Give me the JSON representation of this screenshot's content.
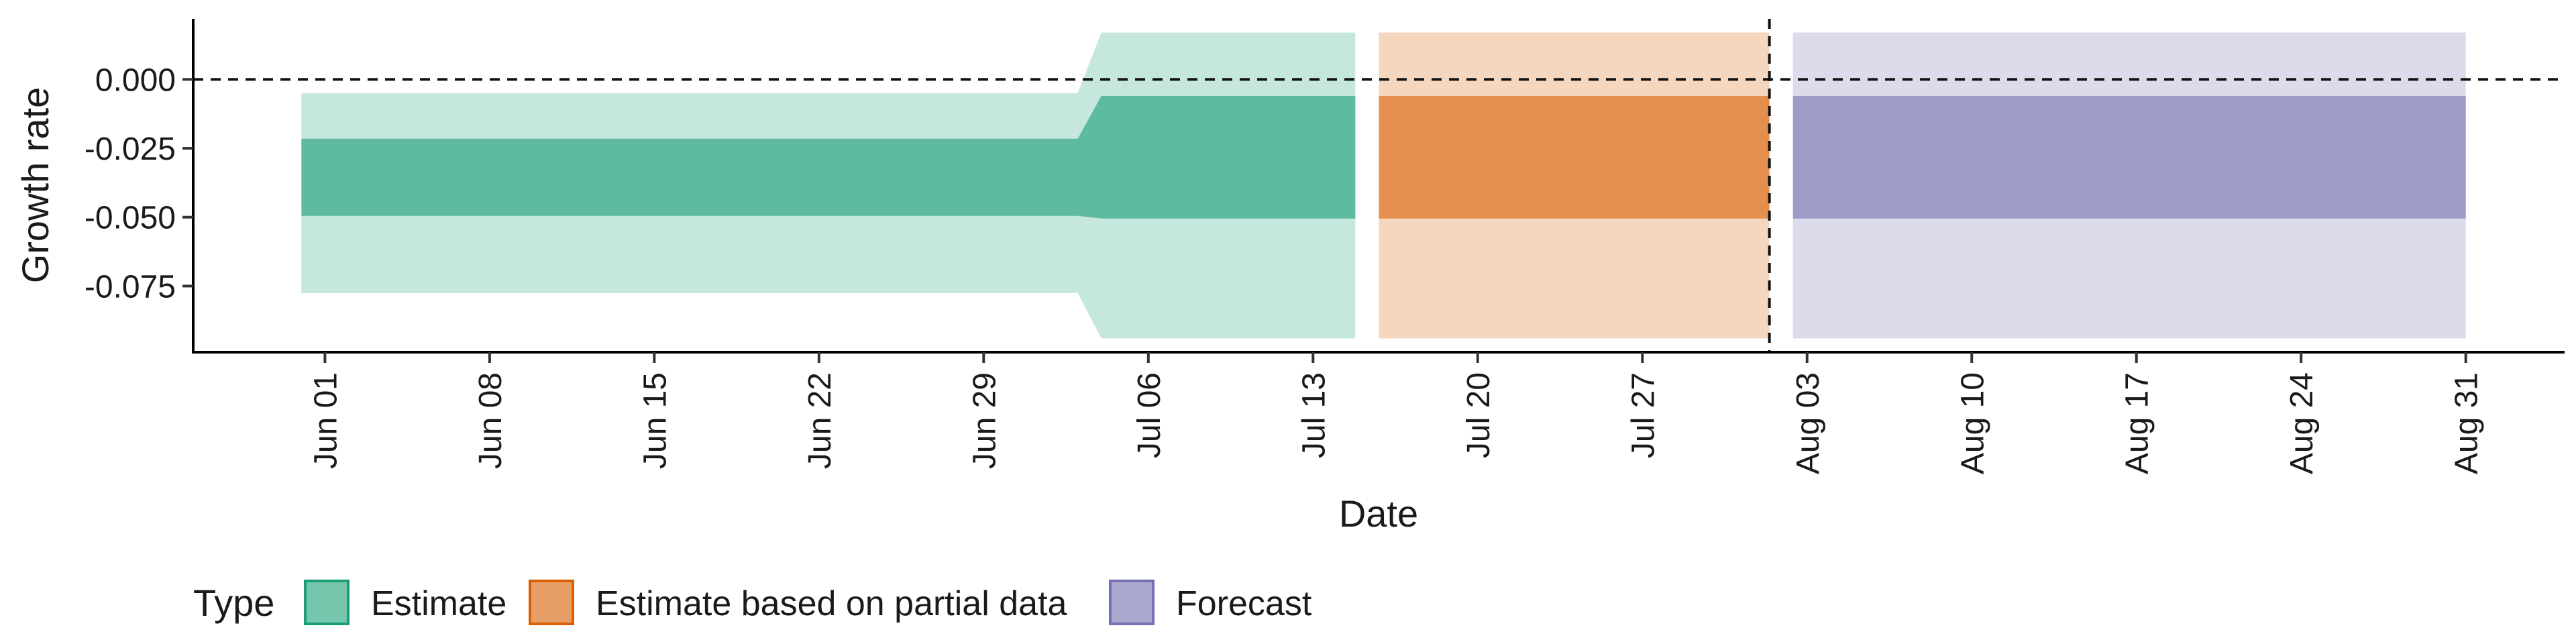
{
  "chart_data": {
    "type": "area",
    "title": "",
    "xlabel": "Date",
    "ylabel": "Growth rate",
    "x_ticks": [
      "Jun 01",
      "Jun 08",
      "Jun 15",
      "Jun 22",
      "Jun 29",
      "Jul 06",
      "Jul 13",
      "Jul 20",
      "Jul 27",
      "Aug 03",
      "Aug 10",
      "Aug 17",
      "Aug 24",
      "Aug 31"
    ],
    "y_ticks": [
      "0.000",
      "-0.025",
      "-0.050",
      "-0.075"
    ],
    "y_tick_values": [
      0.0,
      -0.025,
      -0.05,
      -0.075
    ],
    "xlim_days": [
      -5.6,
      95.2
    ],
    "ylim": [
      -0.099,
      0.022
    ],
    "reference_line_y": 0.0,
    "forecast_start_day": 61.4,
    "legend": {
      "title": "Type",
      "position": "bottom-left",
      "entries": [
        {
          "label": "Estimate",
          "color": "#1B9E77"
        },
        {
          "label": "Estimate based on partial data",
          "color": "#D95F02"
        },
        {
          "label": "Forecast",
          "color": "#7570B3"
        }
      ]
    },
    "series": [
      {
        "name": "Estimate",
        "color": "#1B9E77",
        "points": [
          {
            "day": -1,
            "inner_lo": -0.0495,
            "inner_hi": -0.0215,
            "outer_lo": -0.0775,
            "outer_hi": -0.005
          },
          {
            "day": 32,
            "inner_lo": -0.0495,
            "inner_hi": -0.0215,
            "outer_lo": -0.0775,
            "outer_hi": -0.005
          },
          {
            "day": 33,
            "inner_lo": -0.0505,
            "inner_hi": -0.006,
            "outer_lo": -0.094,
            "outer_hi": 0.017
          },
          {
            "day": 43.8,
            "inner_lo": -0.0505,
            "inner_hi": -0.006,
            "outer_lo": -0.094,
            "outer_hi": 0.017
          }
        ]
      },
      {
        "name": "Estimate based on partial data",
        "color": "#D95F02",
        "points": [
          {
            "day": 44.8,
            "inner_lo": -0.0505,
            "inner_hi": -0.006,
            "outer_lo": -0.094,
            "outer_hi": 0.017
          },
          {
            "day": 61.4,
            "inner_lo": -0.0505,
            "inner_hi": -0.006,
            "outer_lo": -0.094,
            "outer_hi": 0.017
          }
        ]
      },
      {
        "name": "Forecast",
        "color": "#7570B3",
        "points": [
          {
            "day": 62.4,
            "inner_lo": -0.0505,
            "inner_hi": -0.006,
            "outer_lo": -0.094,
            "outer_hi": 0.017
          },
          {
            "day": 91,
            "inner_lo": -0.0505,
            "inner_hi": -0.006,
            "outer_lo": -0.094,
            "outer_hi": 0.017
          }
        ]
      }
    ]
  }
}
